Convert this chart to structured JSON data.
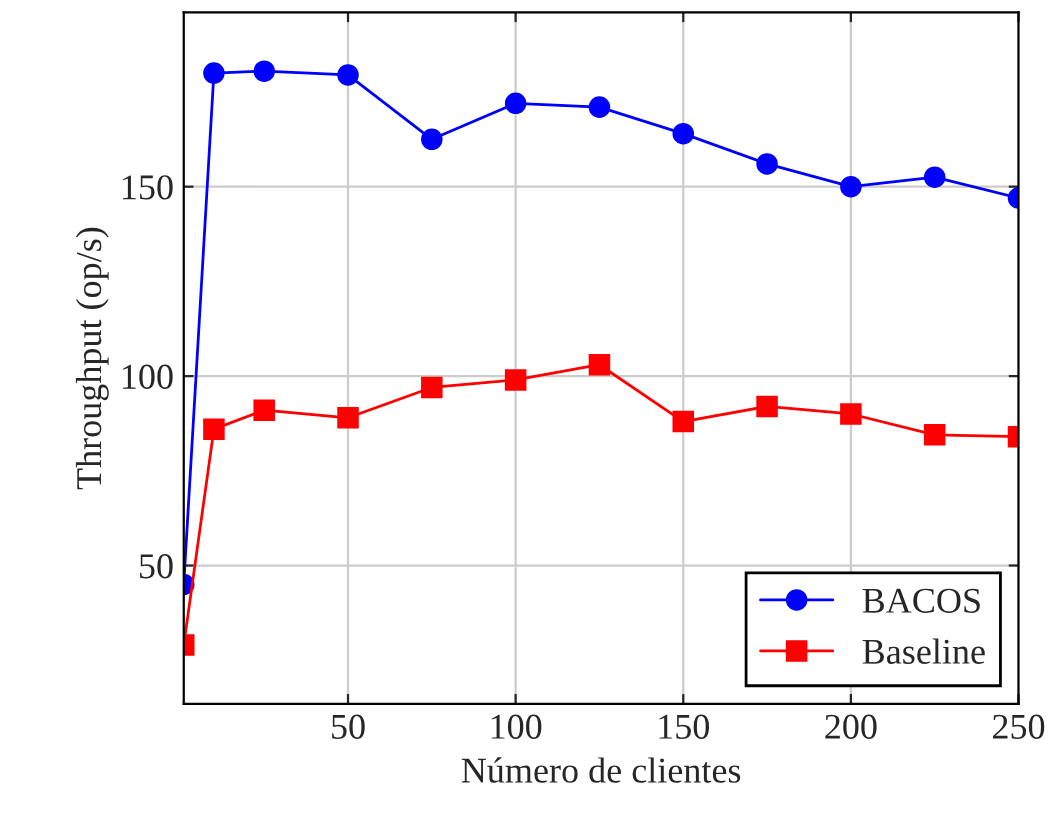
{
  "chart_data": {
    "type": "line",
    "xlabel": "Número de clientes",
    "ylabel": "Throughput (op/s)",
    "x": [
      1,
      10,
      25,
      50,
      75,
      100,
      125,
      150,
      175,
      200,
      225,
      250
    ],
    "series": [
      {
        "name": "BACOS",
        "color": "#0000ff",
        "marker": "circle",
        "values": [
          45,
          180,
          180.5,
          179.5,
          162.5,
          172,
          171,
          164,
          156,
          150,
          152.5,
          147
        ]
      },
      {
        "name": "Baseline",
        "color": "#ff0000",
        "marker": "square",
        "values": [
          29,
          86,
          91,
          89,
          97,
          99,
          103,
          88,
          92,
          90,
          84.5,
          84
        ]
      }
    ],
    "xlim": [
      1,
      250
    ],
    "ylim": [
      13.5,
      196
    ],
    "xticks": [
      50,
      100,
      150,
      200,
      250
    ],
    "yticks": [
      50,
      100,
      150
    ],
    "grid": true,
    "legend": "bottom right",
    "line_style": "solid"
  }
}
